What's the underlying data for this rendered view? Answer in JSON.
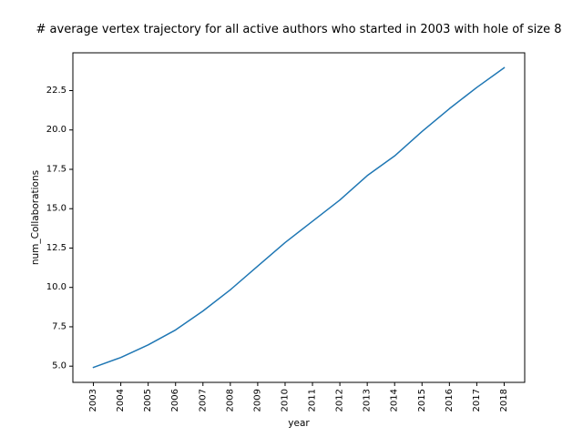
{
  "chart_data": {
    "type": "line",
    "title": "# average vertex trajectory for all active authors who started in 2003 with hole of size 8",
    "xlabel": "year",
    "ylabel": "num_Collaborations",
    "categories": [
      "2003",
      "2004",
      "2005",
      "2006",
      "2007",
      "2008",
      "2009",
      "2010",
      "2011",
      "2012",
      "2013",
      "2014",
      "2015",
      "2016",
      "2017",
      "2018"
    ],
    "series": [
      {
        "values": [
          4.92,
          5.55,
          6.35,
          7.3,
          8.5,
          9.85,
          11.35,
          12.85,
          14.2,
          15.55,
          17.1,
          18.35,
          19.9,
          21.35,
          22.7,
          23.95
        ],
        "color": "#1f77b4"
      }
    ],
    "yticks": [
      "5.0",
      "7.5",
      "10.0",
      "12.5",
      "15.0",
      "17.5",
      "20.0",
      "22.5"
    ],
    "ylim": [
      3.97,
      24.9
    ],
    "grid": false,
    "legend": "none"
  }
}
